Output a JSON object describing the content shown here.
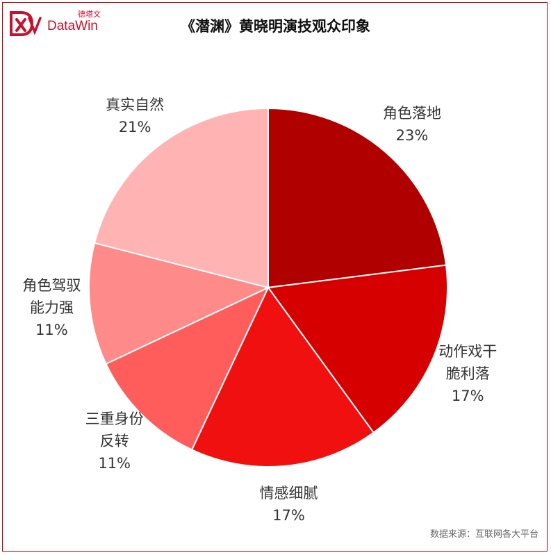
{
  "brand": {
    "cn": "德塔文",
    "en": "DataWin",
    "color": "#c8102e"
  },
  "title": "《潜渊》黄晓明演技观众印象",
  "source": "数据来源：互联网各大平台",
  "chart_data": {
    "type": "pie",
    "title": "《潜渊》黄晓明演技观众印象",
    "slices": [
      {
        "label": [
          "角色落地"
        ],
        "value": 23,
        "pct": "23%",
        "color": "#b00000"
      },
      {
        "label": [
          "动作戏干",
          "脆利落"
        ],
        "value": 17,
        "pct": "17%",
        "color": "#d60000"
      },
      {
        "label": [
          "情感细腻"
        ],
        "value": 17,
        "pct": "17%",
        "color": "#f01010"
      },
      {
        "label": [
          "三重身份",
          "反转"
        ],
        "value": 11,
        "pct": "11%",
        "color": "#ff5c5c"
      },
      {
        "label": [
          "角色驾驭",
          "能力强"
        ],
        "value": 11,
        "pct": "11%",
        "color": "#ff8a8a"
      },
      {
        "label": [
          "真实自然"
        ],
        "value": 21,
        "pct": "21%",
        "color": "#ffb3b3"
      }
    ]
  }
}
